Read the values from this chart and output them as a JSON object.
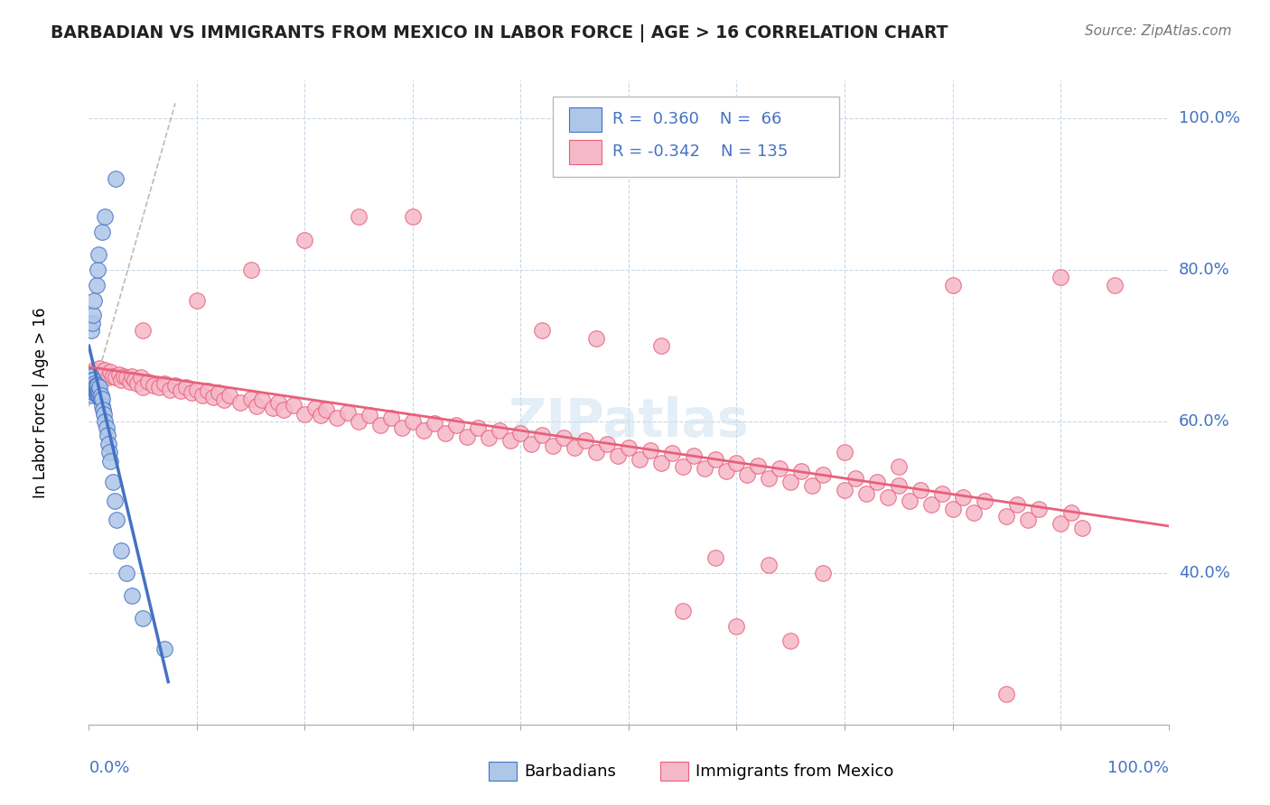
{
  "title": "BARBADIAN VS IMMIGRANTS FROM MEXICO IN LABOR FORCE | AGE > 16 CORRELATION CHART",
  "source": "Source: ZipAtlas.com",
  "ylabel": "In Labor Force | Age > 16",
  "legend_R": [
    0.36,
    -0.342
  ],
  "legend_N": [
    66,
    135
  ],
  "blue_color": "#aec6e8",
  "pink_color": "#f5b8c8",
  "blue_line_color": "#4472c4",
  "pink_line_color": "#e8607a",
  "grid_color": "#c8d8e8",
  "blue_x": [
    0.001,
    0.001,
    0.001,
    0.001,
    0.001,
    0.002,
    0.002,
    0.002,
    0.002,
    0.003,
    0.003,
    0.003,
    0.003,
    0.003,
    0.004,
    0.004,
    0.004,
    0.004,
    0.005,
    0.005,
    0.005,
    0.005,
    0.006,
    0.006,
    0.006,
    0.007,
    0.007,
    0.007,
    0.008,
    0.008,
    0.008,
    0.009,
    0.009,
    0.01,
    0.01,
    0.01,
    0.011,
    0.011,
    0.012,
    0.012,
    0.013,
    0.014,
    0.015,
    0.016,
    0.017,
    0.018,
    0.019,
    0.02,
    0.022,
    0.024,
    0.026,
    0.03,
    0.035,
    0.04,
    0.05,
    0.07,
    0.002,
    0.003,
    0.004,
    0.005,
    0.007,
    0.008,
    0.009,
    0.012,
    0.015,
    0.025
  ],
  "blue_y": [
    0.64,
    0.65,
    0.66,
    0.655,
    0.645,
    0.64,
    0.65,
    0.645,
    0.66,
    0.645,
    0.65,
    0.64,
    0.655,
    0.635,
    0.645,
    0.65,
    0.64,
    0.655,
    0.638,
    0.645,
    0.65,
    0.642,
    0.64,
    0.645,
    0.648,
    0.638,
    0.643,
    0.647,
    0.635,
    0.642,
    0.648,
    0.635,
    0.64,
    0.632,
    0.638,
    0.645,
    0.628,
    0.635,
    0.62,
    0.63,
    0.615,
    0.61,
    0.6,
    0.592,
    0.582,
    0.57,
    0.56,
    0.548,
    0.52,
    0.495,
    0.47,
    0.43,
    0.4,
    0.37,
    0.34,
    0.3,
    0.72,
    0.73,
    0.74,
    0.76,
    0.78,
    0.8,
    0.82,
    0.85,
    0.87,
    0.92
  ],
  "pink_x": [
    0.005,
    0.008,
    0.01,
    0.012,
    0.015,
    0.018,
    0.02,
    0.022,
    0.025,
    0.028,
    0.03,
    0.032,
    0.035,
    0.038,
    0.04,
    0.042,
    0.045,
    0.048,
    0.05,
    0.055,
    0.06,
    0.065,
    0.07,
    0.075,
    0.08,
    0.085,
    0.09,
    0.095,
    0.1,
    0.105,
    0.11,
    0.115,
    0.12,
    0.125,
    0.13,
    0.14,
    0.15,
    0.155,
    0.16,
    0.17,
    0.175,
    0.18,
    0.19,
    0.2,
    0.21,
    0.215,
    0.22,
    0.23,
    0.24,
    0.25,
    0.26,
    0.27,
    0.28,
    0.29,
    0.3,
    0.31,
    0.32,
    0.33,
    0.34,
    0.35,
    0.36,
    0.37,
    0.38,
    0.39,
    0.4,
    0.41,
    0.42,
    0.43,
    0.44,
    0.45,
    0.46,
    0.47,
    0.48,
    0.49,
    0.5,
    0.51,
    0.52,
    0.53,
    0.54,
    0.55,
    0.56,
    0.57,
    0.58,
    0.59,
    0.6,
    0.61,
    0.62,
    0.63,
    0.64,
    0.65,
    0.66,
    0.67,
    0.68,
    0.7,
    0.71,
    0.72,
    0.73,
    0.74,
    0.75,
    0.76,
    0.77,
    0.78,
    0.79,
    0.8,
    0.81,
    0.82,
    0.83,
    0.85,
    0.86,
    0.87,
    0.88,
    0.9,
    0.91,
    0.92,
    0.05,
    0.1,
    0.15,
    0.2,
    0.25,
    0.3,
    0.42,
    0.47,
    0.53,
    0.58,
    0.63,
    0.68,
    0.7,
    0.75,
    0.8,
    0.85,
    0.9,
    0.55,
    0.6,
    0.65,
    0.95
  ],
  "pink_y": [
    0.668,
    0.665,
    0.67,
    0.662,
    0.668,
    0.658,
    0.665,
    0.66,
    0.658,
    0.662,
    0.655,
    0.66,
    0.658,
    0.652,
    0.66,
    0.655,
    0.65,
    0.658,
    0.645,
    0.652,
    0.648,
    0.645,
    0.65,
    0.642,
    0.648,
    0.64,
    0.645,
    0.638,
    0.642,
    0.635,
    0.64,
    0.632,
    0.638,
    0.628,
    0.635,
    0.625,
    0.63,
    0.62,
    0.628,
    0.618,
    0.625,
    0.615,
    0.622,
    0.61,
    0.618,
    0.608,
    0.615,
    0.605,
    0.612,
    0.6,
    0.608,
    0.595,
    0.605,
    0.592,
    0.6,
    0.588,
    0.598,
    0.585,
    0.595,
    0.58,
    0.592,
    0.578,
    0.588,
    0.575,
    0.585,
    0.57,
    0.582,
    0.568,
    0.578,
    0.565,
    0.575,
    0.56,
    0.57,
    0.555,
    0.565,
    0.55,
    0.562,
    0.545,
    0.558,
    0.54,
    0.555,
    0.538,
    0.55,
    0.535,
    0.545,
    0.53,
    0.542,
    0.525,
    0.538,
    0.52,
    0.535,
    0.515,
    0.53,
    0.51,
    0.525,
    0.505,
    0.52,
    0.5,
    0.515,
    0.495,
    0.51,
    0.49,
    0.505,
    0.485,
    0.5,
    0.48,
    0.495,
    0.475,
    0.49,
    0.47,
    0.485,
    0.465,
    0.48,
    0.46,
    0.72,
    0.76,
    0.8,
    0.84,
    0.87,
    0.87,
    0.72,
    0.71,
    0.7,
    0.42,
    0.41,
    0.4,
    0.56,
    0.54,
    0.78,
    0.24,
    0.79,
    0.35,
    0.33,
    0.31,
    0.78
  ]
}
